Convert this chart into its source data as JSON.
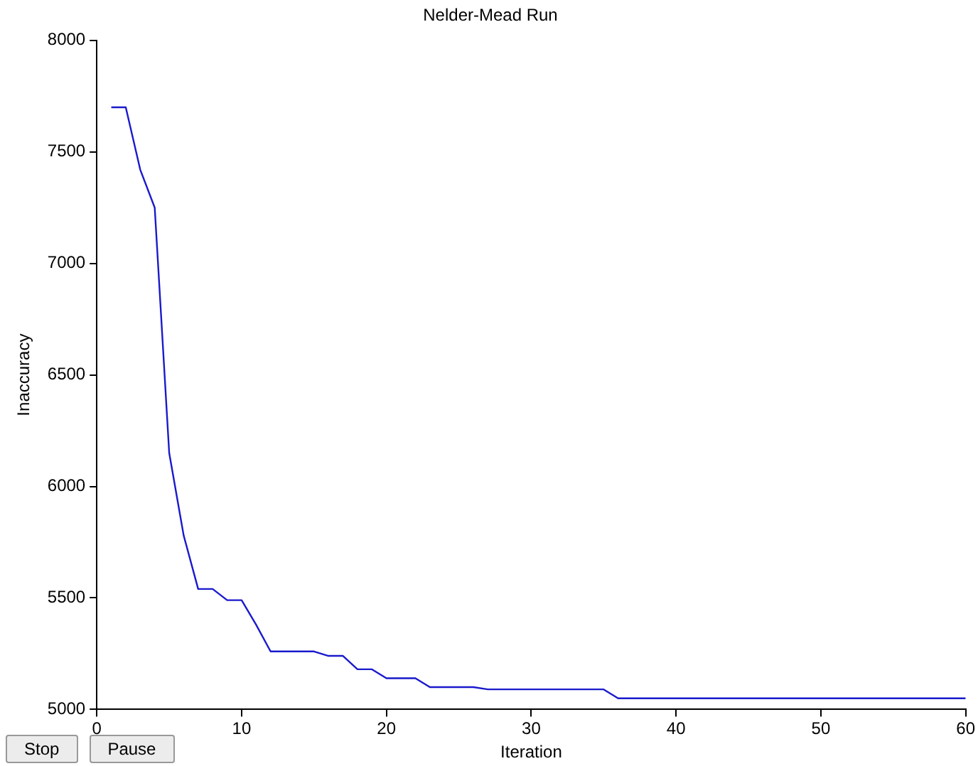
{
  "chart_data": {
    "type": "line",
    "title": "Nelder-Mead Run",
    "xlabel": "Iteration",
    "ylabel": "Inaccuracy",
    "x": [
      1,
      2,
      3,
      4,
      5,
      6,
      7,
      8,
      9,
      10,
      11,
      12,
      13,
      14,
      15,
      16,
      17,
      18,
      19,
      20,
      21,
      22,
      23,
      24,
      25,
      26,
      27,
      28,
      29,
      30,
      31,
      32,
      33,
      34,
      35,
      36,
      37,
      38,
      39,
      40,
      41,
      42,
      43,
      44,
      45,
      46,
      47,
      48,
      49,
      50,
      51,
      52,
      53,
      54,
      55,
      56,
      57,
      58,
      59,
      60
    ],
    "series": [
      {
        "color": "#1a1acc",
        "values": [
          7700,
          7700,
          7420,
          7250,
          6150,
          5780,
          5540,
          5540,
          5490,
          5490,
          5380,
          5260,
          5260,
          5260,
          5260,
          5240,
          5240,
          5180,
          5180,
          5140,
          5140,
          5140,
          5100,
          5100,
          5100,
          5100,
          5090,
          5090,
          5090,
          5090,
          5090,
          5090,
          5090,
          5090,
          5090,
          5050,
          5050,
          5050,
          5050,
          5050,
          5050,
          5050,
          5050,
          5050,
          5050,
          5050,
          5050,
          5050,
          5050,
          5050,
          5050,
          5050,
          5050,
          5050,
          5050,
          5050,
          5050,
          5050,
          5050,
          5050
        ]
      }
    ],
    "xlim": [
      0,
      60
    ],
    "xticks": [
      0,
      10,
      20,
      30,
      40,
      50,
      60
    ],
    "ylim": [
      5000,
      8000
    ],
    "yticks": [
      5000,
      5500,
      6000,
      6500,
      7000,
      7500,
      8000
    ],
    "grid": false,
    "legend": false,
    "marker": "none",
    "line_style": "solid",
    "annotations": [
      "Stop",
      "Pause"
    ]
  }
}
